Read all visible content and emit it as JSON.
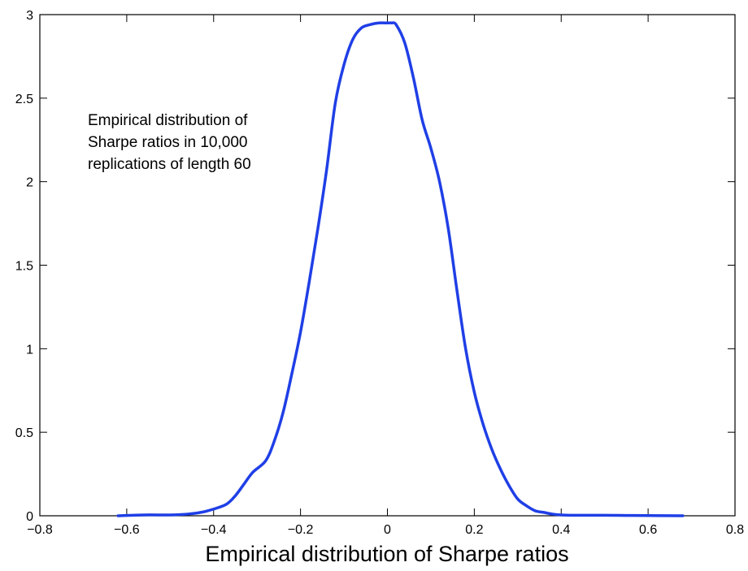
{
  "chart_data": {
    "type": "line",
    "xlabel": "Empirical distribution of Sharpe ratios",
    "ylabel": "",
    "xlim": [
      -0.8,
      0.8
    ],
    "ylim": [
      0,
      3
    ],
    "xticks": [
      "−0.8",
      "−0.6",
      "−0.4",
      "−0.2",
      "0",
      "0.2",
      "0.4",
      "0.6",
      "0.8"
    ],
    "yticks": [
      "0",
      "0.5",
      "1",
      "1.5",
      "2",
      "2.5",
      "3"
    ],
    "grid": false,
    "annotation": [
      "Empirical distribution of",
      "Sharpe ratios in 10,000",
      "replications of length 60"
    ],
    "line_color": "#1f3fe6",
    "series": [
      {
        "x": [
          -0.62,
          -0.56,
          -0.5,
          -0.46,
          -0.43,
          -0.4,
          -0.37,
          -0.35,
          -0.33,
          -0.31,
          -0.28,
          -0.26,
          -0.24,
          -0.22,
          -0.2,
          -0.18,
          -0.16,
          -0.14,
          -0.12,
          -0.1,
          -0.08,
          -0.06,
          -0.04,
          -0.02,
          0.0,
          0.01,
          0.02,
          0.04,
          0.06,
          0.08,
          0.1,
          0.12,
          0.14,
          0.16,
          0.18,
          0.2,
          0.22,
          0.24,
          0.26,
          0.28,
          0.3,
          0.32,
          0.34,
          0.36,
          0.38,
          0.4,
          0.43,
          0.46,
          0.5,
          0.55,
          0.6,
          0.68
        ],
        "y": [
          0.0,
          0.005,
          0.005,
          0.01,
          0.02,
          0.04,
          0.07,
          0.12,
          0.19,
          0.26,
          0.33,
          0.45,
          0.62,
          0.85,
          1.1,
          1.4,
          1.72,
          2.07,
          2.47,
          2.7,
          2.85,
          2.92,
          2.94,
          2.95,
          2.95,
          2.95,
          2.94,
          2.83,
          2.62,
          2.37,
          2.2,
          2.0,
          1.72,
          1.35,
          1.0,
          0.74,
          0.55,
          0.4,
          0.28,
          0.18,
          0.1,
          0.06,
          0.03,
          0.02,
          0.01,
          0.005,
          0.003,
          0.003,
          0.003,
          0.002,
          0.001,
          0.0
        ]
      }
    ]
  }
}
